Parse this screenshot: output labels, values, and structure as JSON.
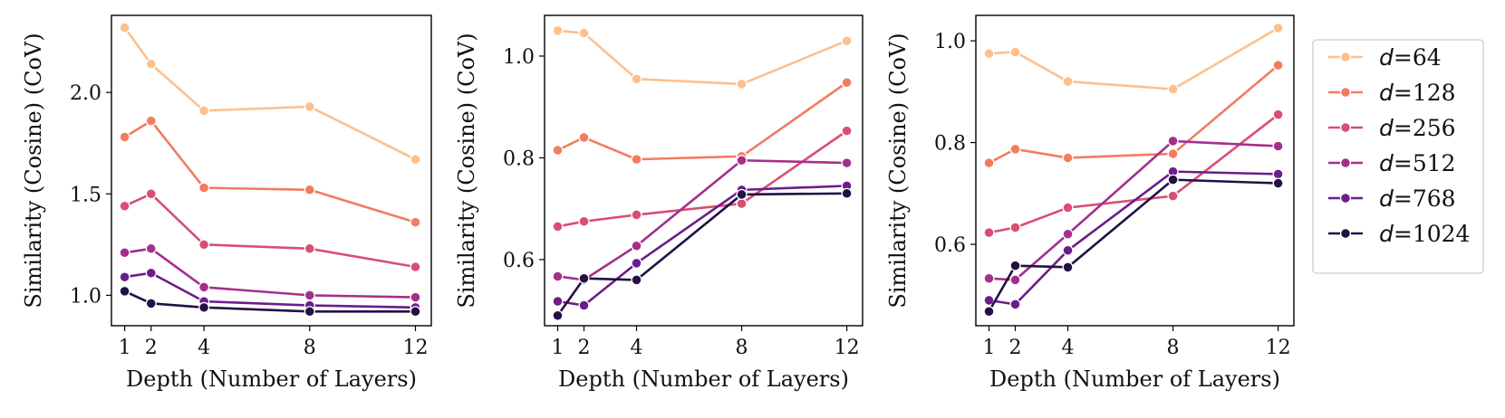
{
  "colors": {
    "d64": "#FDC08C",
    "d128": "#F27C5E",
    "d256": "#D94E72",
    "d512": "#A42F8B",
    "d768": "#6B1D8A",
    "d1024": "#231044"
  },
  "legend": {
    "entries": [
      {
        "prefix": "d",
        "eq": "=64",
        "color_key": "d64"
      },
      {
        "prefix": "d",
        "eq": "=128",
        "color_key": "d128"
      },
      {
        "prefix": "d",
        "eq": "=256",
        "color_key": "d256"
      },
      {
        "prefix": "d",
        "eq": "=512",
        "color_key": "d512"
      },
      {
        "prefix": "d",
        "eq": "=768",
        "color_key": "d768"
      },
      {
        "prefix": "d",
        "eq": "=1024",
        "color_key": "d1024"
      }
    ]
  },
  "chart_data": [
    {
      "type": "line",
      "title": "",
      "xlabel": "Depth (Number of Layers)",
      "ylabel": "Similarity (Cosine) (CoV)",
      "x": [
        1,
        2,
        4,
        8,
        12
      ],
      "x_ticks": [
        1,
        2,
        4,
        8,
        12
      ],
      "x_tick_labels": [
        "1",
        "2",
        "4",
        "8",
        "12"
      ],
      "xlim": [
        0.5,
        12.6
      ],
      "ylim": [
        0.85,
        2.38
      ],
      "y_ticks": [
        1.0,
        1.5,
        2.0
      ],
      "y_tick_labels": [
        "1.0",
        "1.5",
        "2.0"
      ],
      "series": [
        {
          "name": "d=64",
          "color_key": "d64",
          "values": [
            2.32,
            2.14,
            1.91,
            1.93,
            1.67
          ]
        },
        {
          "name": "d=128",
          "color_key": "d128",
          "values": [
            1.78,
            1.86,
            1.53,
            1.52,
            1.36
          ]
        },
        {
          "name": "d=256",
          "color_key": "d256",
          "values": [
            1.44,
            1.5,
            1.25,
            1.23,
            1.14
          ]
        },
        {
          "name": "d=512",
          "color_key": "d512",
          "values": [
            1.21,
            1.23,
            1.04,
            1.0,
            0.99
          ]
        },
        {
          "name": "d=768",
          "color_key": "d768",
          "values": [
            1.09,
            1.11,
            0.97,
            0.95,
            0.94
          ]
        },
        {
          "name": "d=1024",
          "color_key": "d1024",
          "values": [
            1.02,
            0.96,
            0.94,
            0.92,
            0.92
          ]
        }
      ]
    },
    {
      "type": "line",
      "title": "",
      "xlabel": "Depth (Number of Layers)",
      "ylabel": "Similarity (Cosine) (CoV)",
      "x": [
        1,
        2,
        4,
        8,
        12
      ],
      "x_ticks": [
        1,
        2,
        4,
        8,
        12
      ],
      "x_tick_labels": [
        "1",
        "2",
        "4",
        "8",
        "12"
      ],
      "xlim": [
        0.5,
        12.6
      ],
      "ylim": [
        0.47,
        1.08
      ],
      "y_ticks": [
        0.6,
        0.8,
        1.0
      ],
      "y_tick_labels": [
        "0.6",
        "0.8",
        "1.0"
      ],
      "series": [
        {
          "name": "d=64",
          "color_key": "d64",
          "values": [
            1.05,
            1.045,
            0.955,
            0.945,
            1.03
          ]
        },
        {
          "name": "d=128",
          "color_key": "d128",
          "values": [
            0.815,
            0.84,
            0.797,
            0.803,
            0.948
          ]
        },
        {
          "name": "d=256",
          "color_key": "d256",
          "values": [
            0.665,
            0.675,
            0.688,
            0.71,
            0.853
          ]
        },
        {
          "name": "d=512",
          "color_key": "d512",
          "values": [
            0.567,
            0.56,
            0.627,
            0.795,
            0.79
          ]
        },
        {
          "name": "d=768",
          "color_key": "d768",
          "values": [
            0.518,
            0.51,
            0.593,
            0.737,
            0.745
          ]
        },
        {
          "name": "d=1024",
          "color_key": "d1024",
          "values": [
            0.49,
            0.563,
            0.56,
            0.728,
            0.73
          ]
        }
      ]
    },
    {
      "type": "line",
      "title": "",
      "xlabel": "Depth (Number of Layers)",
      "ylabel": "Similarity (Cosine) (CoV)",
      "x": [
        1,
        2,
        4,
        8,
        12
      ],
      "x_ticks": [
        1,
        2,
        4,
        8,
        12
      ],
      "x_tick_labels": [
        "1",
        "2",
        "4",
        "8",
        "12"
      ],
      "xlim": [
        0.5,
        12.6
      ],
      "ylim": [
        0.44,
        1.05
      ],
      "y_ticks": [
        0.6,
        0.8,
        1.0
      ],
      "y_tick_labels": [
        "0.6",
        "0.8",
        "1.0"
      ],
      "series": [
        {
          "name": "d=64",
          "color_key": "d64",
          "values": [
            0.975,
            0.978,
            0.92,
            0.905,
            1.025
          ]
        },
        {
          "name": "d=128",
          "color_key": "d128",
          "values": [
            0.76,
            0.787,
            0.77,
            0.778,
            0.952
          ]
        },
        {
          "name": "d=256",
          "color_key": "d256",
          "values": [
            0.623,
            0.633,
            0.672,
            0.695,
            0.855
          ]
        },
        {
          "name": "d=512",
          "color_key": "d512",
          "values": [
            0.533,
            0.53,
            0.62,
            0.803,
            0.793
          ]
        },
        {
          "name": "d=768",
          "color_key": "d768",
          "values": [
            0.49,
            0.482,
            0.588,
            0.743,
            0.738
          ]
        },
        {
          "name": "d=1024",
          "color_key": "d1024",
          "values": [
            0.468,
            0.558,
            0.555,
            0.727,
            0.72
          ]
        }
      ]
    }
  ]
}
